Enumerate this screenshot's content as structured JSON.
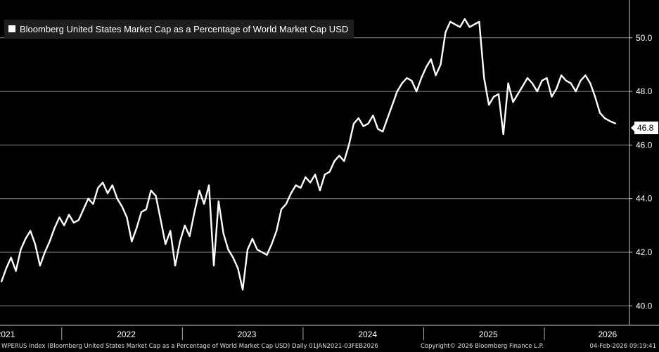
{
  "chart_data": {
    "type": "line",
    "title": "Bloomberg United States Market Cap as a Percentage of World Market Cap USD",
    "xlabel": "",
    "ylabel": "",
    "ylim": [
      39.3,
      51.2
    ],
    "y_ticks": [
      "40.0",
      "42.0",
      "44.0",
      "46.0",
      "48.0",
      "50.0"
    ],
    "x_ticks": [
      "2021",
      "2022",
      "2023",
      "2024",
      "2025",
      "2026"
    ],
    "x_range": [
      2021.0,
      2026.1
    ],
    "grid": true,
    "legend": "top-left",
    "last_value_label": "46.8",
    "series": [
      {
        "name": "Bloomberg United States Market Cap as a Percentage of World Market Cap USD",
        "color": "#ffffff",
        "x": [
          2021.0,
          2021.04,
          2021.08,
          2021.12,
          2021.16,
          2021.2,
          2021.24,
          2021.28,
          2021.32,
          2021.36,
          2021.4,
          2021.44,
          2021.48,
          2021.52,
          2021.56,
          2021.6,
          2021.64,
          2021.68,
          2021.72,
          2021.76,
          2021.8,
          2021.84,
          2021.88,
          2021.92,
          2021.96,
          2022.0,
          2022.04,
          2022.08,
          2022.12,
          2022.16,
          2022.2,
          2022.24,
          2022.28,
          2022.32,
          2022.36,
          2022.4,
          2022.44,
          2022.48,
          2022.52,
          2022.56,
          2022.6,
          2022.64,
          2022.68,
          2022.72,
          2022.76,
          2022.8,
          2022.84,
          2022.88,
          2022.92,
          2022.96,
          2023.0,
          2023.04,
          2023.08,
          2023.12,
          2023.16,
          2023.2,
          2023.24,
          2023.28,
          2023.32,
          2023.36,
          2023.4,
          2023.44,
          2023.48,
          2023.52,
          2023.56,
          2023.6,
          2023.64,
          2023.68,
          2023.72,
          2023.76,
          2023.8,
          2023.84,
          2023.88,
          2023.92,
          2023.96,
          2024.0,
          2024.04,
          2024.08,
          2024.12,
          2024.16,
          2024.2,
          2024.24,
          2024.28,
          2024.32,
          2024.36,
          2024.4,
          2024.44,
          2024.48,
          2024.52,
          2024.56,
          2024.6,
          2024.64,
          2024.68,
          2024.72,
          2024.76,
          2024.8,
          2024.84,
          2024.88,
          2024.92,
          2024.96,
          2025.0,
          2025.04,
          2025.08,
          2025.12,
          2025.16,
          2025.2,
          2025.24,
          2025.28,
          2025.32,
          2025.36,
          2025.4,
          2025.44,
          2025.48,
          2025.52,
          2025.56,
          2025.6,
          2025.64,
          2025.68,
          2025.72,
          2025.76,
          2025.8,
          2025.84,
          2025.88,
          2025.92,
          2025.96,
          2026.0,
          2026.04,
          2026.09
        ],
        "values": [
          40.9,
          41.4,
          41.8,
          41.3,
          42.1,
          42.5,
          42.8,
          42.3,
          41.5,
          42.0,
          42.4,
          42.9,
          43.3,
          43.0,
          43.4,
          43.1,
          43.2,
          43.6,
          44.0,
          43.8,
          44.4,
          44.6,
          44.2,
          44.5,
          44.0,
          43.7,
          43.3,
          42.4,
          42.9,
          43.5,
          43.6,
          44.3,
          44.1,
          43.2,
          42.3,
          42.8,
          41.5,
          42.4,
          43.0,
          42.6,
          43.5,
          44.3,
          43.8,
          44.5,
          41.5,
          43.9,
          42.7,
          42.1,
          41.8,
          41.4,
          40.6,
          42.1,
          42.5,
          42.1,
          42.0,
          41.9,
          42.3,
          42.8,
          43.6,
          43.8,
          44.2,
          44.5,
          44.4,
          44.8,
          44.6,
          44.9,
          44.3,
          44.9,
          45.0,
          45.4,
          45.6,
          45.4,
          46.0,
          46.8,
          47.0,
          46.7,
          46.8,
          47.1,
          46.6,
          46.5,
          47.0,
          47.5,
          48.0,
          48.3,
          48.5,
          48.4,
          48.0,
          48.5,
          48.9,
          49.2,
          48.6,
          49.0,
          50.2,
          50.6,
          50.5,
          50.4,
          50.7,
          50.4,
          50.5,
          50.6,
          48.5,
          47.5,
          47.8,
          47.9,
          46.4,
          48.3,
          47.6,
          47.9,
          48.2,
          48.5,
          48.3,
          48.0,
          48.4,
          48.5,
          47.8,
          48.1,
          48.6,
          48.4,
          48.3,
          48.0,
          48.4,
          48.6,
          48.3,
          47.8,
          47.2,
          47.0,
          46.9,
          46.8
        ]
      }
    ]
  },
  "legend": {
    "title": "Bloomberg United States Market Cap as a Percentage of World Market Cap USD"
  },
  "footer": {
    "left": "WPERUS Index (Bloomberg United States Market Cap as a Percentage of World Market Cap USD) Daily 01JAN2021-03FEB2026",
    "middle": "Copyright© 2026 Bloomberg Finance L.P.",
    "right": "04-Feb-2026 09:19:41"
  }
}
